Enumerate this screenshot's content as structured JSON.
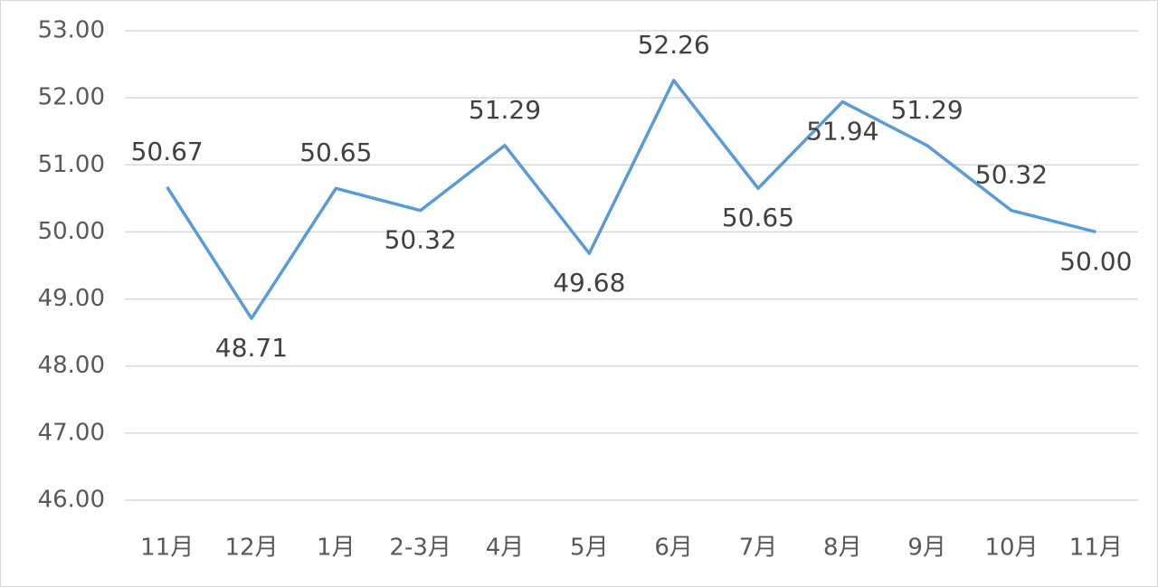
{
  "chart_data": {
    "type": "line",
    "categories": [
      "11月",
      "12月",
      "1月",
      "2-3月",
      "4月",
      "5月",
      "6月",
      "7月",
      "8月",
      "9月",
      "10月",
      "11月"
    ],
    "series": [
      {
        "color": "#5b9bd5",
        "values": [
          50.67,
          48.71,
          50.65,
          50.32,
          51.29,
          49.68,
          52.26,
          50.65,
          51.94,
          51.29,
          50.32,
          50.0
        ],
        "value_labels": [
          "50.67",
          "48.71",
          "50.65",
          "50.32",
          "51.29",
          "49.68",
          "52.26",
          "50.65",
          "51.94",
          "51.29",
          "50.32",
          "50.00"
        ]
      }
    ],
    "ylim": [
      46,
      53
    ],
    "yticks": [
      {
        "value": 46,
        "label": "46.00"
      },
      {
        "value": 47,
        "label": "47.00"
      },
      {
        "value": 48,
        "label": "48.00"
      },
      {
        "value": 49,
        "label": "49.00"
      },
      {
        "value": 50,
        "label": "50.00"
      },
      {
        "value": 51,
        "label": "51.00"
      },
      {
        "value": 52,
        "label": "52.00"
      },
      {
        "value": 53,
        "label": "53.00"
      }
    ],
    "grid": true
  }
}
